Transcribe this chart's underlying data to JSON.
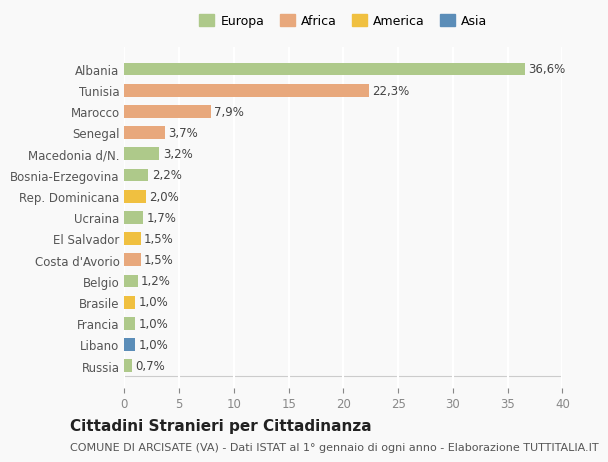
{
  "countries": [
    "Russia",
    "Libano",
    "Francia",
    "Brasile",
    "Belgio",
    "Costa d'Avorio",
    "El Salvador",
    "Ucraina",
    "Rep. Dominicana",
    "Bosnia-Erzegovina",
    "Macedonia d/N.",
    "Senegal",
    "Marocco",
    "Tunisia",
    "Albania"
  ],
  "values": [
    0.7,
    1.0,
    1.0,
    1.0,
    1.2,
    1.5,
    1.5,
    1.7,
    2.0,
    2.2,
    3.2,
    3.7,
    7.9,
    22.3,
    36.6
  ],
  "labels": [
    "0,7%",
    "1,0%",
    "1,0%",
    "1,0%",
    "1,2%",
    "1,5%",
    "1,5%",
    "1,7%",
    "2,0%",
    "2,2%",
    "3,2%",
    "3,7%",
    "7,9%",
    "22,3%",
    "36,6%"
  ],
  "continents": [
    "Europa",
    "Asia",
    "Europa",
    "America",
    "Europa",
    "Africa",
    "America",
    "Europa",
    "America",
    "Europa",
    "Europa",
    "Africa",
    "Africa",
    "Africa",
    "Europa"
  ],
  "continent_colors": {
    "Europa": "#aec98a",
    "Africa": "#e8a87c",
    "America": "#f0c040",
    "Asia": "#5b8db8"
  },
  "legend_order": [
    "Europa",
    "Africa",
    "America",
    "Asia"
  ],
  "legend_colors": [
    "#aec98a",
    "#e8a87c",
    "#f0c040",
    "#5b8db8"
  ],
  "title": "Cittadini Stranieri per Cittadinanza",
  "subtitle": "COMUNE DI ARCISATE (VA) - Dati ISTAT al 1° gennaio di ogni anno - Elaborazione TUTTITALIA.IT",
  "xlim": [
    0,
    40
  ],
  "xticks": [
    0,
    5,
    10,
    15,
    20,
    25,
    30,
    35,
    40
  ],
  "background_color": "#f9f9f9",
  "grid_color": "#ffffff",
  "bar_height": 0.6,
  "label_fontsize": 8.5,
  "tick_fontsize": 8.5,
  "title_fontsize": 11,
  "subtitle_fontsize": 8
}
